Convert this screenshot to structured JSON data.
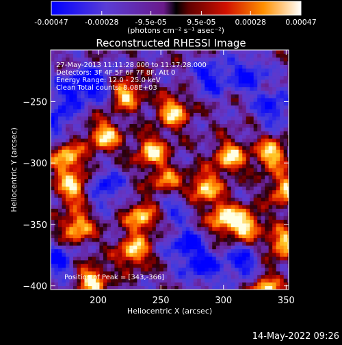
{
  "chart_data": {
    "type": "heatmap",
    "title": "Reconstructed RHESSI Image",
    "xlabel": "Heliocentric X (arcsec)",
    "ylabel": "Heliocentric Y (arcsec)",
    "xlim": [
      162,
      352
    ],
    "ylim": [
      -403,
      -208
    ],
    "x_ticks": [
      200,
      250,
      300,
      350
    ],
    "y_ticks": [
      -250,
      -300,
      -350,
      -400
    ],
    "colorbar": {
      "range": [
        -0.00047,
        0.00047
      ],
      "ticks": [
        -0.00047,
        -0.00028,
        -9.5e-05,
        9.5e-05,
        0.00028,
        0.00047
      ],
      "tick_labels": [
        "-0.00047",
        "-0.00028",
        "-9.5e-05",
        "9.5e-05",
        "0.00028",
        "0.00047"
      ],
      "units_label": "(photons cm⁻² s⁻¹ asec⁻²)"
    },
    "annotations": [
      "27-May-2013 11:11:28.000 to 11:17:28.000",
      "Detectors: 3F 4F 5F 6F 7F 8F, Att 0",
      "Energy Range: 12.0 - 25.0 keV",
      "Clean     Total counts: 8.08E+03"
    ],
    "peak": {
      "label": "Position of Peak = [343,-366]",
      "x": 343,
      "y": -366
    },
    "hotspots": [
      {
        "x": 243,
        "y": -291
      },
      {
        "x": 205,
        "y": -278
      },
      {
        "x": 235,
        "y": -344
      },
      {
        "x": 305,
        "y": -295
      },
      {
        "x": 338,
        "y": -293
      },
      {
        "x": 180,
        "y": -320
      },
      {
        "x": 183,
        "y": -352
      },
      {
        "x": 285,
        "y": -320
      },
      {
        "x": 348,
        "y": -365
      },
      {
        "x": 318,
        "y": -350
      },
      {
        "x": 300,
        "y": -345
      },
      {
        "x": 175,
        "y": -296
      },
      {
        "x": 228,
        "y": -372
      },
      {
        "x": 195,
        "y": -395
      },
      {
        "x": 333,
        "y": -403
      },
      {
        "x": 350,
        "y": -322
      },
      {
        "x": 255,
        "y": -318
      },
      {
        "x": 222,
        "y": -243
      },
      {
        "x": 260,
        "y": -258
      }
    ],
    "coldspots": [
      {
        "x": 165,
        "y": -265
      },
      {
        "x": 200,
        "y": -235
      },
      {
        "x": 290,
        "y": -230
      },
      {
        "x": 320,
        "y": -228
      },
      {
        "x": 340,
        "y": -255
      },
      {
        "x": 315,
        "y": -382
      },
      {
        "x": 283,
        "y": -385
      },
      {
        "x": 258,
        "y": -330
      },
      {
        "x": 205,
        "y": -320
      },
      {
        "x": 180,
        "y": -240
      },
      {
        "x": 270,
        "y": -366
      },
      {
        "x": 168,
        "y": -380
      }
    ]
  },
  "footer": {
    "date": "14-May-2022 09:26"
  }
}
